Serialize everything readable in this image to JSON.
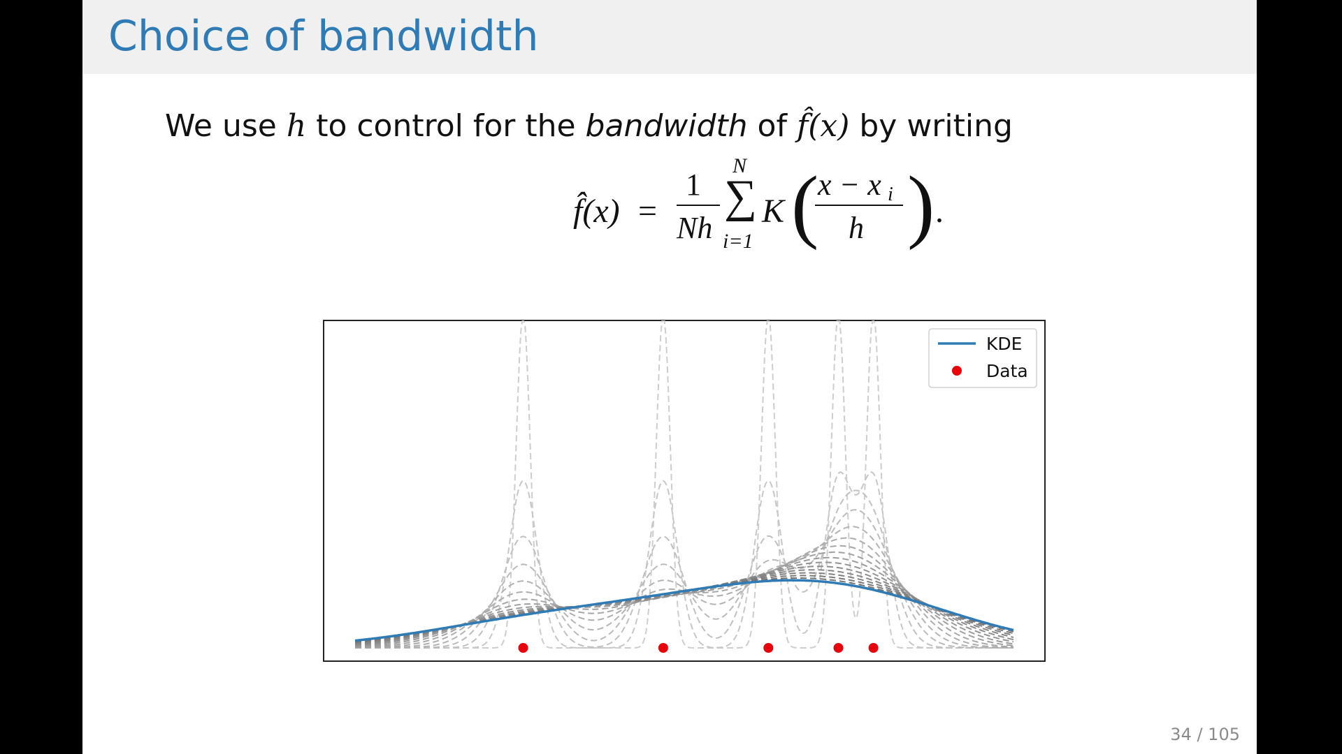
{
  "slide": {
    "title": "Choice of bandwidth",
    "intro": {
      "part1": "We use ",
      "h": "h",
      "part2": " to control for the ",
      "emph": "bandwidth",
      "part3": " of ",
      "fx": "f̂(x)",
      "part4": " by writing"
    },
    "formula": {
      "lhs": "f̂(x)",
      "eq": "=",
      "num1": "1",
      "den1": "Nh",
      "sum_top": "N",
      "sum_sym": "∑",
      "sum_bot": "i=1",
      "kernel": "K",
      "num2": "x − x",
      "num2_sub": "i",
      "den2": "h",
      "lparen": "(",
      "rparen": ")",
      "period": "."
    },
    "page": "34 / 105"
  },
  "chart_data": {
    "type": "line",
    "title": "",
    "xlabel": "",
    "ylabel": "",
    "axes_visible": false,
    "grid": false,
    "legend": {
      "position": "top-right",
      "entries": [
        "KDE",
        "Data"
      ]
    },
    "colors": {
      "kde": "#2f7bb5",
      "data": "#e8000b",
      "bandwidth_curves": "#9a9a9a"
    },
    "x_range": [
      -0.2,
      4.5
    ],
    "data_points": [
      1.0,
      2.0,
      2.75,
      3.25,
      3.5
    ],
    "kde_bandwidth": 0.8,
    "bandwidth_curves_h": [
      0.05,
      0.1,
      0.15,
      0.2,
      0.25,
      0.3,
      0.35,
      0.4,
      0.45,
      0.5,
      0.55,
      0.6,
      0.65,
      0.7,
      0.75
    ],
    "series": [
      {
        "name": "KDE",
        "style": "solid"
      },
      {
        "name": "Data",
        "style": "markers"
      }
    ]
  }
}
